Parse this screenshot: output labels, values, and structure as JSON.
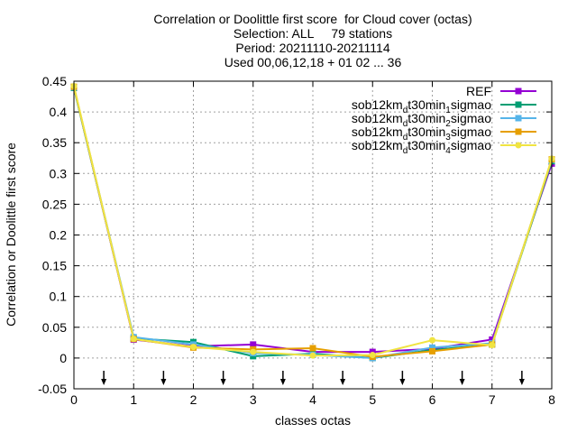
{
  "chart_data": {
    "type": "line",
    "title_lines": [
      "Correlation or Doolittle first score  for Cloud cover (octas)",
      "Selection: ALL     79 stations",
      "Period: 20211110-20211114",
      "Used 00,06,12,18 + 01 02 ... 36"
    ],
    "xlabel": "classes octas",
    "ylabel": "Correlation or Doolittle first score",
    "xlim": [
      0,
      8
    ],
    "ylim": [
      -0.05,
      0.45
    ],
    "x_ticks": [
      0,
      1,
      2,
      3,
      4,
      5,
      6,
      7,
      8
    ],
    "y_ticks": [
      -0.05,
      0,
      0.05,
      0.1,
      0.15,
      0.2,
      0.25,
      0.3,
      0.35,
      0.4,
      0.45
    ],
    "y_tick_labels": [
      "-0.05",
      "0",
      "0.05",
      "0.1",
      "0.15",
      "0.2",
      "0.25",
      "0.3",
      "0.35",
      "0.4",
      "0.45"
    ],
    "grid": true,
    "legend_position": "top-right",
    "markers_at_x": [
      0.5,
      1.5,
      2.5,
      3.5,
      4.5,
      5.5,
      6.5,
      7.5
    ],
    "x": [
      0,
      1,
      2,
      3,
      4,
      5,
      6,
      7,
      8
    ],
    "series": [
      {
        "name": "REF",
        "name_parts": [],
        "color": "#9400d3",
        "marker": "square",
        "values": [
          0.44,
          0.03,
          0.019,
          0.022,
          0.01,
          0.01,
          0.015,
          0.03,
          0.316
        ]
      },
      {
        "name": "sob12km_dt30min_1sigmao",
        "name_parts": [
          "sob12km",
          "d",
          "t30min",
          "1",
          "sigmao"
        ],
        "color": "#009e73",
        "marker": "square",
        "values": [
          0.439,
          0.032,
          0.026,
          0.003,
          0.007,
          0.0,
          0.013,
          0.022,
          0.32
        ]
      },
      {
        "name": "sob12km_dt30min_2sigmao",
        "name_parts": [
          "sob12km",
          "d",
          "t30min",
          "2",
          "sigmao"
        ],
        "color": "#56b4e9",
        "marker": "square",
        "values": [
          0.44,
          0.034,
          0.022,
          0.008,
          0.005,
          0.0,
          0.017,
          0.024,
          0.322
        ]
      },
      {
        "name": "sob12km_dt30min_3sigmao",
        "name_parts": [
          "sob12km",
          "d",
          "t30min",
          "3",
          "sigmao"
        ],
        "color": "#e69f00",
        "marker": "square",
        "values": [
          0.441,
          0.031,
          0.017,
          0.014,
          0.016,
          0.002,
          0.011,
          0.022,
          0.323
        ]
      },
      {
        "name": "sob12km_dt30min_4sigmao",
        "name_parts": [
          "sob12km",
          "d",
          "t30min",
          "4",
          "sigmao"
        ],
        "color": "#f0e442",
        "marker": "circle",
        "values": [
          0.442,
          0.031,
          0.018,
          0.01,
          0.004,
          0.005,
          0.029,
          0.021,
          0.324
        ]
      }
    ]
  }
}
